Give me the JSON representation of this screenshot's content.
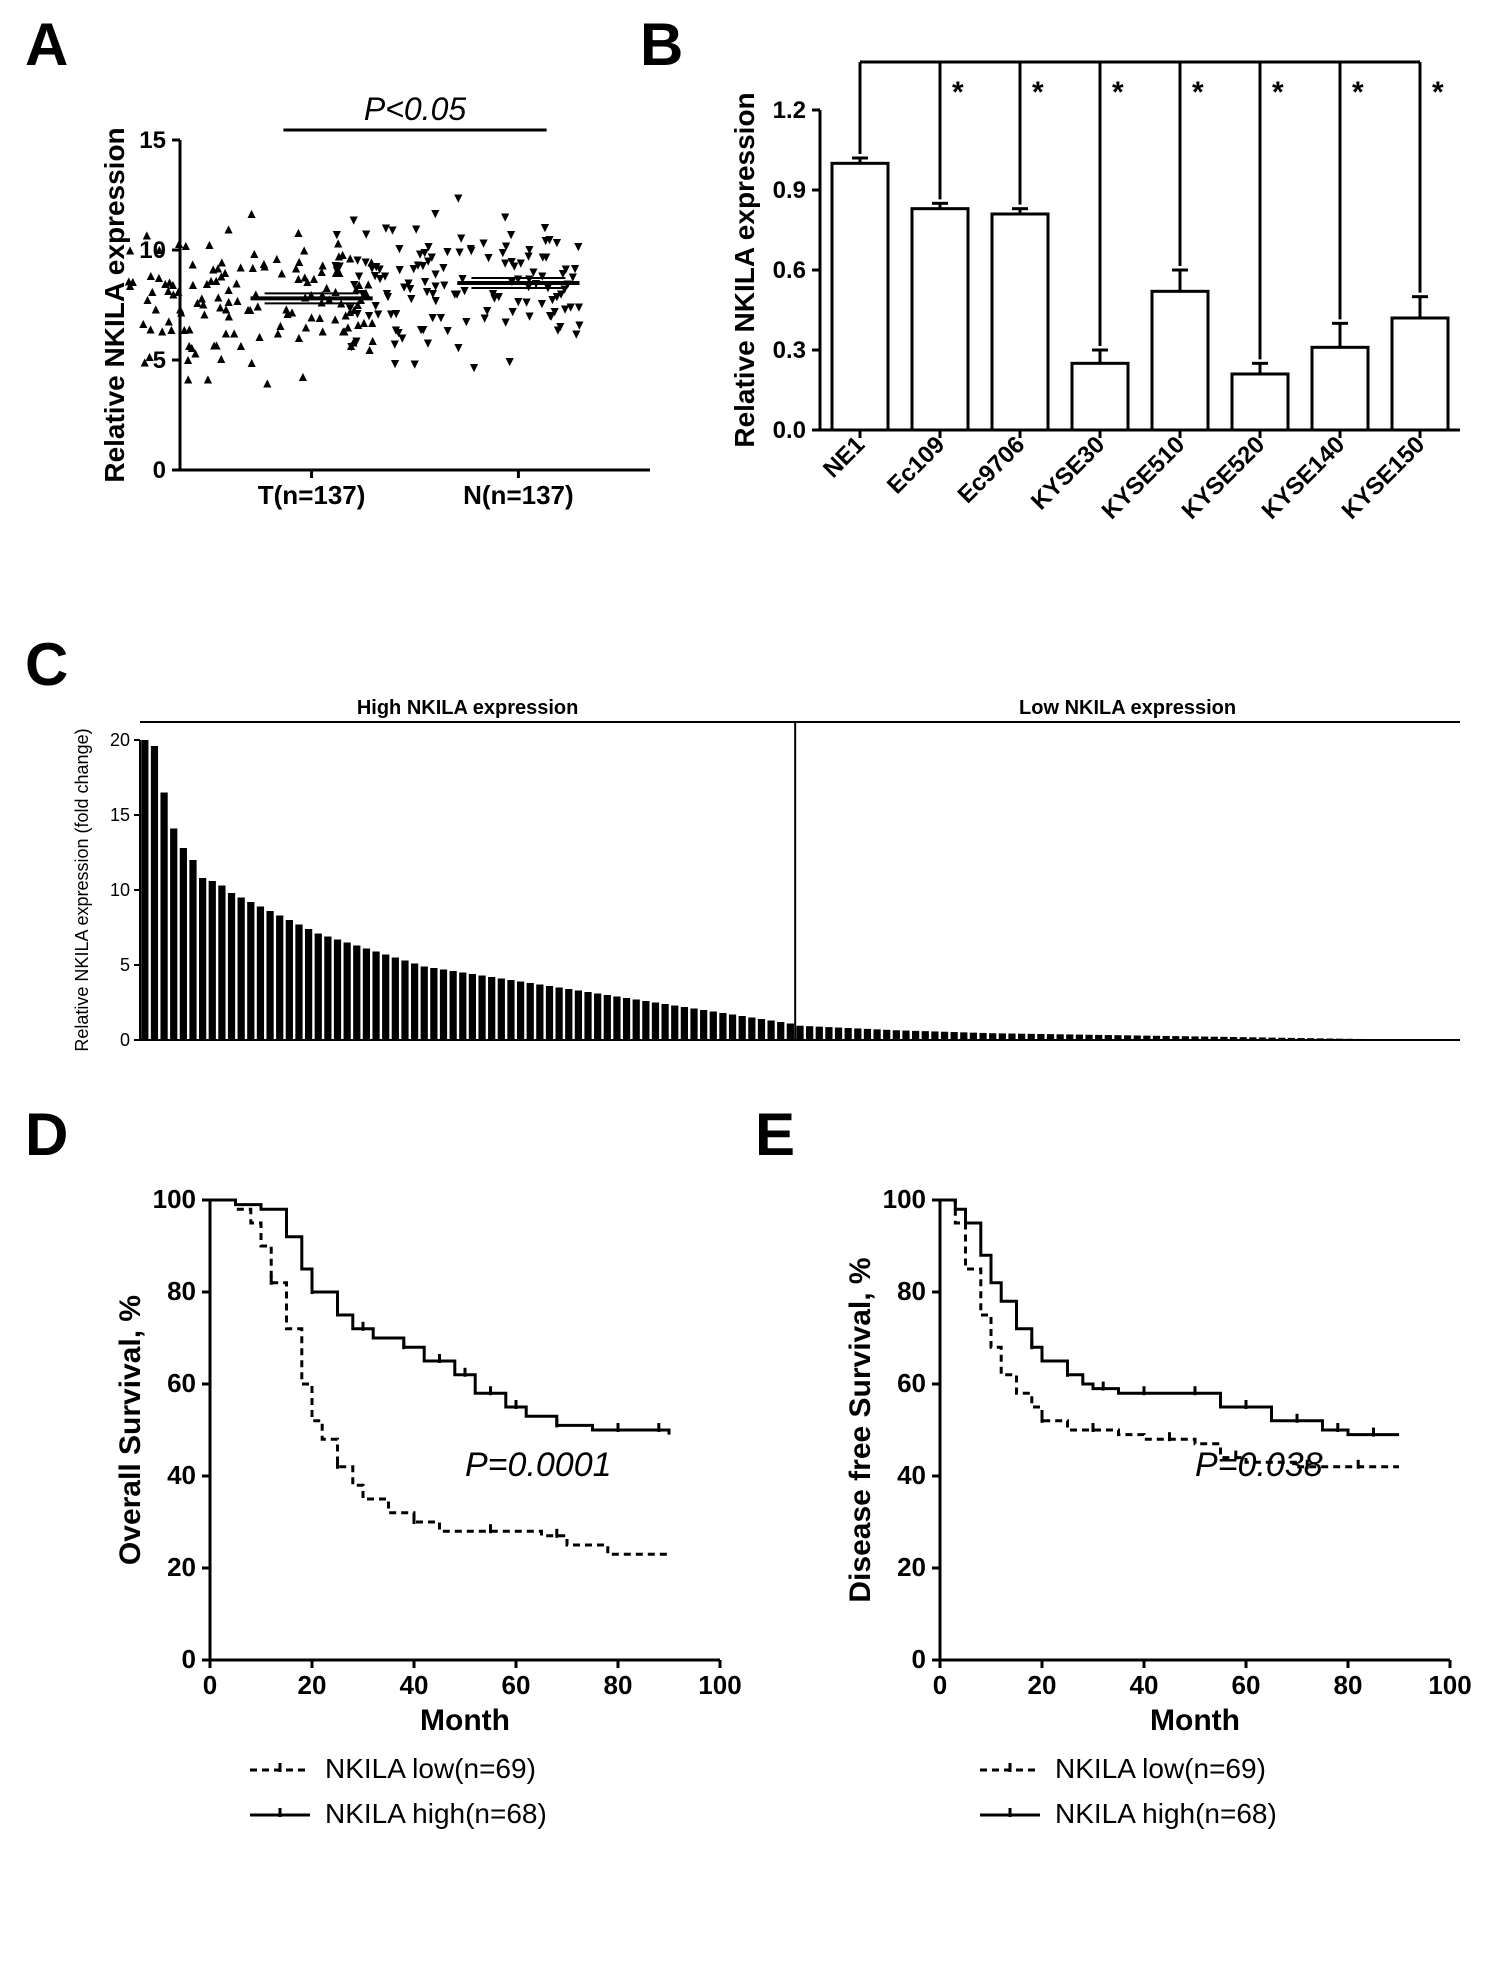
{
  "panelA": {
    "label": "A",
    "type": "scatter",
    "ylabel": "Relative NKILA expression",
    "categories": [
      "T(n=137)",
      "N(n=137)"
    ],
    "p_value": "P<0.05",
    "ylim": [
      0,
      15
    ],
    "ytick_step": 5,
    "medianT": 7.8,
    "medianN": 8.5,
    "marker_up": "▲",
    "marker_down": "▼",
    "marker_color": "#000000",
    "axis_fontsize": 28,
    "tick_fontsize": 24
  },
  "panelB": {
    "label": "B",
    "type": "bar",
    "ylabel": "Relative NKILA expression",
    "categories": [
      "NE1",
      "Ec109",
      "Ec9706",
      "KYSE30",
      "KYSE510",
      "KYSE520",
      "KYSE140",
      "KYSE150"
    ],
    "values": [
      1.0,
      0.83,
      0.81,
      0.25,
      0.52,
      0.21,
      0.31,
      0.42
    ],
    "errors": [
      0.02,
      0.02,
      0.02,
      0.05,
      0.08,
      0.04,
      0.09,
      0.08
    ],
    "sig_marker": "*",
    "ylim": [
      0,
      1.2
    ],
    "ytick_step": 0.3,
    "bar_color": "#ffffff",
    "bar_border": "#000000",
    "bar_width": 0.7,
    "axis_fontsize": 28
  },
  "panelC": {
    "label": "C",
    "type": "bar",
    "ylabel": "Relative NKILA expression (fold change)",
    "group_labels": [
      "High NKILA expression",
      "Low NKILA expression"
    ],
    "ylim": [
      0,
      20
    ],
    "ytick_step": 5,
    "split_index": 68,
    "total_bars": 137,
    "bar_color": "#000000",
    "values_high": [
      20.2,
      19.6,
      16.5,
      14.1,
      12.8,
      12.0,
      10.8,
      10.6,
      10.3,
      9.8,
      9.5,
      9.2,
      8.9,
      8.6,
      8.3,
      8.0,
      7.7,
      7.4,
      7.1,
      6.9,
      6.7,
      6.5,
      6.3,
      6.1,
      5.9,
      5.7,
      5.5,
      5.3,
      5.1,
      4.9,
      4.8,
      4.7,
      4.6,
      4.5,
      4.4,
      4.3,
      4.2,
      4.1,
      4.0,
      3.9,
      3.8,
      3.7,
      3.6,
      3.5,
      3.4,
      3.3,
      3.2,
      3.1,
      3.0,
      2.9,
      2.8,
      2.7,
      2.6,
      2.5,
      2.4,
      2.3,
      2.2,
      2.1,
      2.0,
      1.9,
      1.8,
      1.7,
      1.6,
      1.5,
      1.4,
      1.3,
      1.2,
      1.1
    ],
    "values_low": [
      0.95,
      0.92,
      0.89,
      0.86,
      0.83,
      0.8,
      0.77,
      0.74,
      0.71,
      0.68,
      0.65,
      0.63,
      0.61,
      0.59,
      0.57,
      0.55,
      0.53,
      0.51,
      0.49,
      0.47,
      0.45,
      0.44,
      0.43,
      0.42,
      0.41,
      0.4,
      0.39,
      0.38,
      0.37,
      0.36,
      0.35,
      0.34,
      0.33,
      0.32,
      0.31,
      0.3,
      0.29,
      0.28,
      0.27,
      0.26,
      0.25,
      0.24,
      0.23,
      0.22,
      0.21,
      0.2,
      0.19,
      0.18,
      0.17,
      0.16,
      0.15,
      0.14,
      0.13,
      0.12,
      0.11,
      0.1,
      0.09,
      0.08,
      0.07,
      0.06,
      0.05,
      0.04,
      0.03,
      0.03,
      0.02,
      0.02,
      0.02,
      0.01,
      0.01
    ],
    "axis_fontsize": 18
  },
  "panelD": {
    "label": "D",
    "type": "survival",
    "ylabel": "Overall Survival, %",
    "xlabel": "Month",
    "ylim": [
      0,
      100
    ],
    "xlim": [
      0,
      100
    ],
    "ytick_step": 20,
    "xtick_step": 20,
    "p_value": "P=0.0001",
    "legend": [
      "NKILA low(n=69)",
      "NKILA high(n=68)"
    ],
    "low_dash": "7,5",
    "high_dash": "none",
    "line_color": "#000000",
    "line_width": 3,
    "curve_low": [
      [
        0,
        100
      ],
      [
        5,
        98
      ],
      [
        8,
        95
      ],
      [
        10,
        90
      ],
      [
        12,
        82
      ],
      [
        15,
        72
      ],
      [
        18,
        60
      ],
      [
        20,
        52
      ],
      [
        22,
        48
      ],
      [
        25,
        42
      ],
      [
        28,
        38
      ],
      [
        30,
        35
      ],
      [
        35,
        32
      ],
      [
        40,
        30
      ],
      [
        45,
        28
      ],
      [
        50,
        28
      ],
      [
        60,
        28
      ],
      [
        65,
        27
      ],
      [
        70,
        25
      ],
      [
        78,
        23
      ],
      [
        90,
        23
      ]
    ],
    "curve_high": [
      [
        0,
        100
      ],
      [
        5,
        99
      ],
      [
        10,
        98
      ],
      [
        15,
        92
      ],
      [
        18,
        85
      ],
      [
        20,
        80
      ],
      [
        25,
        75
      ],
      [
        28,
        72
      ],
      [
        32,
        70
      ],
      [
        38,
        68
      ],
      [
        42,
        65
      ],
      [
        48,
        62
      ],
      [
        52,
        58
      ],
      [
        58,
        55
      ],
      [
        62,
        53
      ],
      [
        68,
        51
      ],
      [
        75,
        50
      ],
      [
        82,
        50
      ],
      [
        90,
        49
      ]
    ],
    "censor_low": [
      [
        12,
        82
      ],
      [
        25,
        42
      ],
      [
        40,
        30
      ],
      [
        55,
        28
      ],
      [
        68,
        25
      ]
    ],
    "censor_high": [
      [
        20,
        80
      ],
      [
        30,
        72
      ],
      [
        38,
        68
      ],
      [
        45,
        64
      ],
      [
        50,
        60
      ],
      [
        55,
        56
      ],
      [
        60,
        54
      ],
      [
        68,
        51
      ],
      [
        80,
        50
      ],
      [
        88,
        49
      ]
    ]
  },
  "panelE": {
    "label": "E",
    "type": "survival",
    "ylabel": "Disease free Survival, %",
    "xlabel": "Month",
    "ylim": [
      0,
      100
    ],
    "xlim": [
      0,
      100
    ],
    "ytick_step": 20,
    "xtick_step": 20,
    "p_value": "P=0.038",
    "legend": [
      "NKILA low(n=69)",
      "NKILA high(n=68)"
    ],
    "low_dash": "7,5",
    "high_dash": "none",
    "line_color": "#000000",
    "line_width": 3,
    "curve_low": [
      [
        0,
        100
      ],
      [
        3,
        95
      ],
      [
        5,
        85
      ],
      [
        8,
        75
      ],
      [
        10,
        68
      ],
      [
        12,
        62
      ],
      [
        15,
        58
      ],
      [
        18,
        55
      ],
      [
        20,
        52
      ],
      [
        25,
        50
      ],
      [
        30,
        50
      ],
      [
        35,
        49
      ],
      [
        40,
        48
      ],
      [
        50,
        47
      ],
      [
        55,
        44
      ],
      [
        60,
        43
      ],
      [
        70,
        42
      ],
      [
        80,
        42
      ],
      [
        90,
        42
      ]
    ],
    "curve_high": [
      [
        0,
        100
      ],
      [
        3,
        98
      ],
      [
        5,
        95
      ],
      [
        8,
        88
      ],
      [
        10,
        82
      ],
      [
        12,
        78
      ],
      [
        15,
        72
      ],
      [
        18,
        68
      ],
      [
        20,
        65
      ],
      [
        25,
        62
      ],
      [
        28,
        60
      ],
      [
        30,
        59
      ],
      [
        35,
        58
      ],
      [
        45,
        58
      ],
      [
        55,
        55
      ],
      [
        65,
        52
      ],
      [
        75,
        50
      ],
      [
        80,
        49
      ],
      [
        90,
        49
      ]
    ],
    "censor_low": [
      [
        20,
        52
      ],
      [
        30,
        50
      ],
      [
        45,
        47
      ],
      [
        58,
        43
      ],
      [
        72,
        42
      ],
      [
        82,
        42
      ]
    ],
    "censor_high": [
      [
        18,
        68
      ],
      [
        25,
        62
      ],
      [
        32,
        58
      ],
      [
        40,
        58
      ],
      [
        50,
        56
      ],
      [
        60,
        53
      ],
      [
        70,
        51
      ],
      [
        78,
        49
      ],
      [
        85,
        49
      ]
    ]
  }
}
